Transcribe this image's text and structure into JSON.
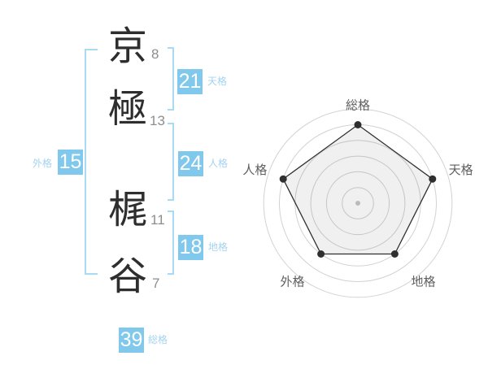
{
  "name": {
    "characters": [
      {
        "char": "京",
        "strokes": "8"
      },
      {
        "char": "極",
        "strokes": "13"
      },
      {
        "char": "梶",
        "strokes": "11"
      },
      {
        "char": "谷",
        "strokes": "7"
      }
    ],
    "scores": {
      "tenkaku": {
        "value": "21",
        "label": "天格"
      },
      "jinkaku": {
        "value": "24",
        "label": "人格"
      },
      "chikaku": {
        "value": "18",
        "label": "地格"
      },
      "gaikaku": {
        "value": "15",
        "label": "外格"
      },
      "soukaku": {
        "value": "39",
        "label": "総格"
      }
    }
  },
  "chart_data": {
    "type": "radar",
    "axes": [
      "総格",
      "天格",
      "地格",
      "外格",
      "人格"
    ],
    "values": [
      5,
      5,
      4,
      4,
      5
    ],
    "scale_max": 6,
    "grid_rings": 6,
    "grid_shape": "circle",
    "legend": "none",
    "ring_color": "#d2d2d2",
    "polygon_fill": "rgba(0,0,0,0.06)",
    "polygon_stroke": "#2f2f2f",
    "vertex_dot_color": "#2f2f2f",
    "center_dot_color": "#bbbbbb"
  },
  "colors": {
    "badge_bg": "#80c8ec",
    "badge_text": "#ffffff",
    "score_label": "#a5d3ef",
    "bracket": "#a8d9f5",
    "char_color": "#2e2e2e",
    "stroke_num_color": "#8e8e8e",
    "chart_label": "#5f5f5f"
  }
}
